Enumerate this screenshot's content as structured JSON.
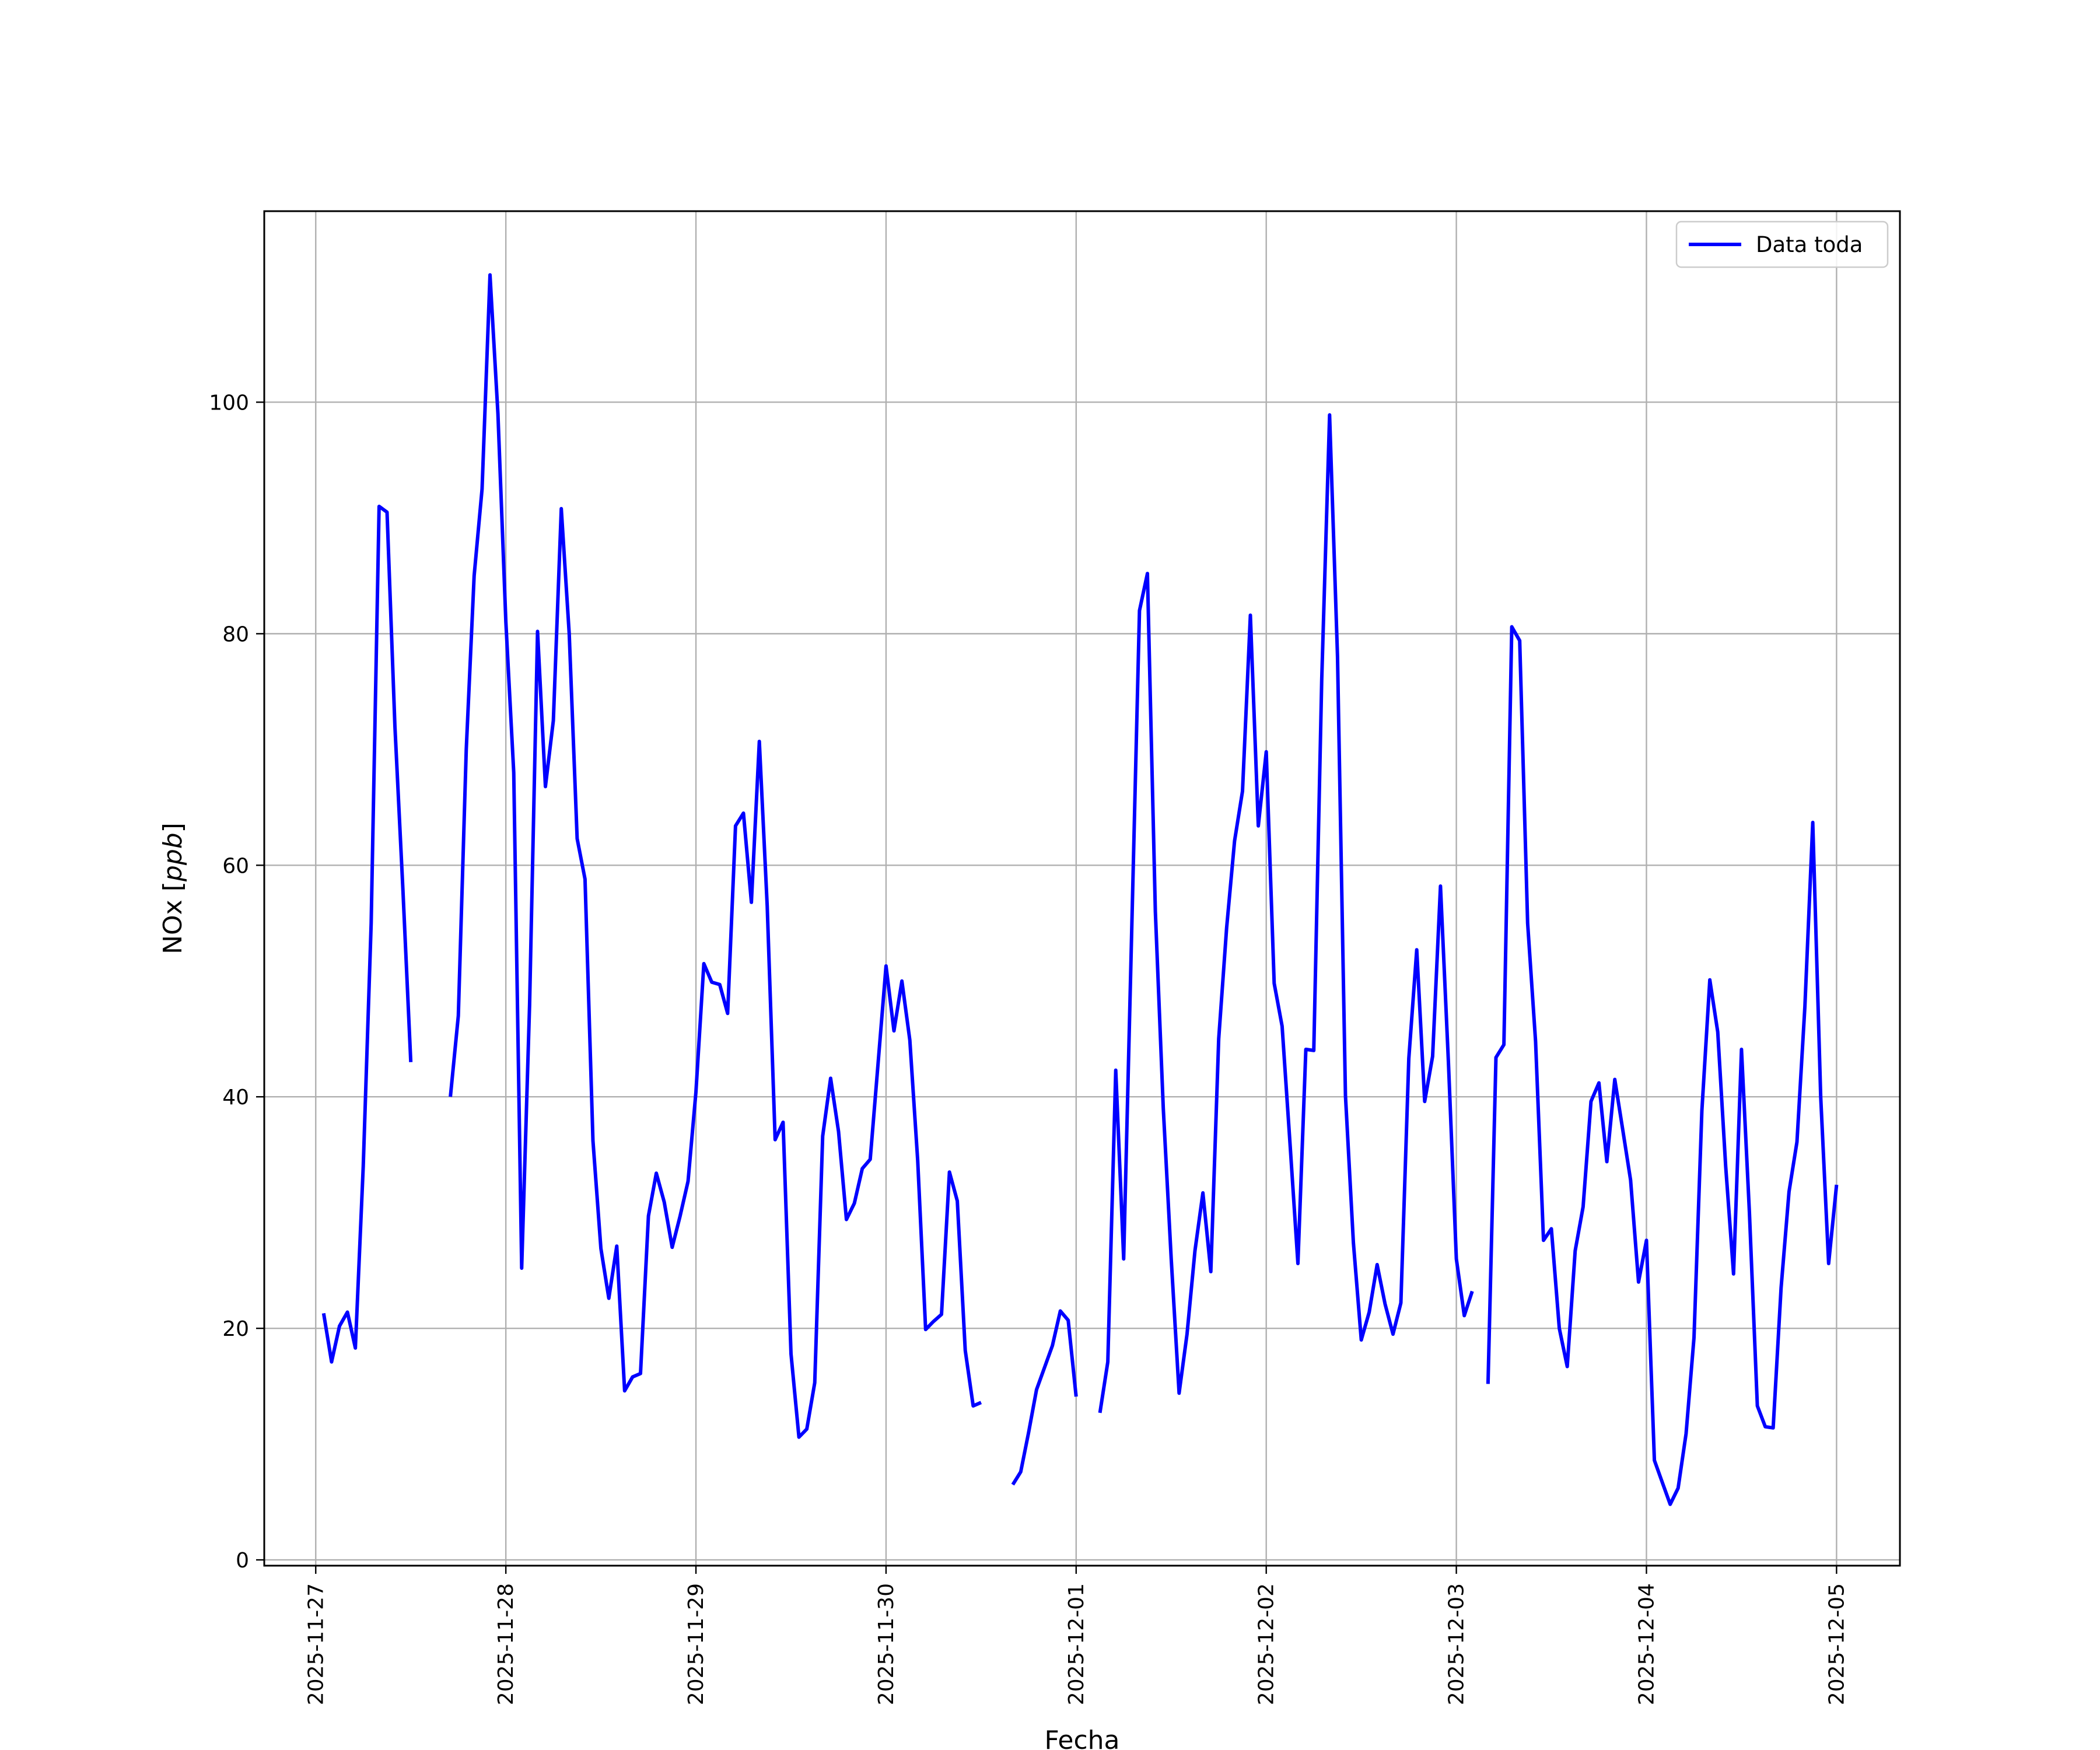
{
  "chart_data": {
    "type": "line",
    "xlabel": "Fecha",
    "ylabel": "NOx [ppb]",
    "ylabel_main": "NOx ",
    "ylabel_unit": "ppb",
    "xlim": [
      "2025-11-26T17:30",
      "2025-12-05T08:00"
    ],
    "ylim": [
      -0.5,
      116.5
    ],
    "x_ticks": [
      "2025-11-27",
      "2025-11-28",
      "2025-11-29",
      "2025-11-30",
      "2025-12-01",
      "2025-12-02",
      "2025-12-03",
      "2025-12-04",
      "2025-12-05"
    ],
    "y_ticks": [
      0,
      20,
      40,
      60,
      80,
      100
    ],
    "grid": true,
    "legend_position": "top-right",
    "color": "#0000ff",
    "series": [
      {
        "name": "Data toda",
        "points": [
          [
            "2025-11-27T01:00",
            21.3
          ],
          [
            "2025-11-27T02:00",
            17.1
          ],
          [
            "2025-11-27T03:00",
            20.2
          ],
          [
            "2025-11-27T04:00",
            21.4
          ],
          [
            "2025-11-27T05:00",
            18.3
          ],
          [
            "2025-11-27T06:00",
            34.0
          ],
          [
            "2025-11-27T07:00",
            55.0
          ],
          [
            "2025-11-27T08:00",
            91.0
          ],
          [
            "2025-11-27T09:00",
            90.5
          ],
          [
            "2025-11-27T10:00",
            72.0
          ],
          [
            "2025-11-27T11:00",
            58.0
          ],
          [
            "2025-11-27T12:00",
            43.0
          ],
          [
            "2025-11-27T13:00",
            null
          ],
          [
            "2025-11-27T14:00",
            null
          ],
          [
            "2025-11-27T15:00",
            null
          ],
          [
            "2025-11-27T16:00",
            null
          ],
          [
            "2025-11-27T17:00",
            40.0
          ],
          [
            "2025-11-27T18:00",
            47.0
          ],
          [
            "2025-11-27T19:00",
            70.0
          ],
          [
            "2025-11-27T20:00",
            85.0
          ],
          [
            "2025-11-27T21:00",
            92.5
          ],
          [
            "2025-11-27T22:00",
            111.0
          ],
          [
            "2025-11-27T23:00",
            99.0
          ],
          [
            "2025-11-28T00:00",
            81.0
          ],
          [
            "2025-11-28T01:00",
            68.0
          ],
          [
            "2025-11-28T02:00",
            25.2
          ],
          [
            "2025-11-28T03:00",
            48.0
          ],
          [
            "2025-11-28T04:00",
            80.2
          ],
          [
            "2025-11-28T05:00",
            66.8
          ],
          [
            "2025-11-28T06:00",
            72.5
          ],
          [
            "2025-11-28T07:00",
            90.8
          ],
          [
            "2025-11-28T08:00",
            80.0
          ],
          [
            "2025-11-28T09:00",
            62.3
          ],
          [
            "2025-11-28T10:00",
            58.8
          ],
          [
            "2025-11-28T11:00",
            36.2
          ],
          [
            "2025-11-28T12:00",
            26.9
          ],
          [
            "2025-11-28T13:00",
            22.6
          ],
          [
            "2025-11-28T14:00",
            27.1
          ],
          [
            "2025-11-28T15:00",
            14.6
          ],
          [
            "2025-11-28T16:00",
            15.8
          ],
          [
            "2025-11-28T17:00",
            16.1
          ],
          [
            "2025-11-28T18:00",
            29.7
          ],
          [
            "2025-11-28T19:00",
            33.4
          ],
          [
            "2025-11-28T20:00",
            30.9
          ],
          [
            "2025-11-28T21:00",
            27.0
          ],
          [
            "2025-11-28T22:00",
            29.7
          ],
          [
            "2025-11-28T23:00",
            32.7
          ],
          [
            "2025-11-29T00:00",
            40.4
          ],
          [
            "2025-11-29T01:00",
            51.5
          ],
          [
            "2025-11-29T02:00",
            49.9
          ],
          [
            "2025-11-29T03:00",
            49.7
          ],
          [
            "2025-11-29T04:00",
            47.2
          ],
          [
            "2025-11-29T05:00",
            63.4
          ],
          [
            "2025-11-29T06:00",
            64.5
          ],
          [
            "2025-11-29T07:00",
            56.8
          ],
          [
            "2025-11-29T08:00",
            70.7
          ],
          [
            "2025-11-29T09:00",
            56.5
          ],
          [
            "2025-11-29T10:00",
            36.3
          ],
          [
            "2025-11-29T11:00",
            37.8
          ],
          [
            "2025-11-29T12:00",
            17.8
          ],
          [
            "2025-11-29T13:00",
            10.6
          ],
          [
            "2025-11-29T14:00",
            11.3
          ],
          [
            "2025-11-29T15:00",
            15.3
          ],
          [
            "2025-11-29T16:00",
            36.6
          ],
          [
            "2025-11-29T17:00",
            41.6
          ],
          [
            "2025-11-29T18:00",
            37.0
          ],
          [
            "2025-11-29T19:00",
            29.4
          ],
          [
            "2025-11-29T20:00",
            30.8
          ],
          [
            "2025-11-29T21:00",
            33.8
          ],
          [
            "2025-11-29T22:00",
            34.6
          ],
          [
            "2025-11-29T23:00",
            42.9
          ],
          [
            "2025-11-30T00:00",
            51.3
          ],
          [
            "2025-11-30T01:00",
            45.7
          ],
          [
            "2025-11-30T02:00",
            50.0
          ],
          [
            "2025-11-30T03:00",
            44.9
          ],
          [
            "2025-11-30T04:00",
            34.5
          ],
          [
            "2025-11-30T05:00",
            19.9
          ],
          [
            "2025-11-30T06:00",
            20.6
          ],
          [
            "2025-11-30T07:00",
            21.2
          ],
          [
            "2025-11-30T08:00",
            33.5
          ],
          [
            "2025-11-30T09:00",
            31.0
          ],
          [
            "2025-11-30T10:00",
            18.1
          ],
          [
            "2025-11-30T11:00",
            13.3
          ],
          [
            "2025-11-30T12:00",
            13.6
          ],
          [
            "2025-11-30T13:00",
            null
          ],
          [
            "2025-11-30T14:00",
            null
          ],
          [
            "2025-11-30T15:00",
            null
          ],
          [
            "2025-11-30T16:00",
            6.5
          ],
          [
            "2025-11-30T17:00",
            7.6
          ],
          [
            "2025-11-30T18:00",
            11.0
          ],
          [
            "2025-11-30T19:00",
            14.7
          ],
          [
            "2025-11-30T20:00",
            16.6
          ],
          [
            "2025-11-30T21:00",
            18.5
          ],
          [
            "2025-11-30T22:00",
            21.5
          ],
          [
            "2025-11-30T23:00",
            20.7
          ],
          [
            "2025-12-01T00:00",
            14.1
          ],
          [
            "2025-12-01T01:00",
            null
          ],
          [
            "2025-12-01T02:00",
            null
          ],
          [
            "2025-12-01T03:00",
            12.7
          ],
          [
            "2025-12-01T04:00",
            17.1
          ],
          [
            "2025-12-01T05:00",
            42.3
          ],
          [
            "2025-12-01T06:00",
            26.0
          ],
          [
            "2025-12-01T07:00",
            54.0
          ],
          [
            "2025-12-01T08:00",
            82.0
          ],
          [
            "2025-12-01T09:00",
            85.2
          ],
          [
            "2025-12-01T10:00",
            56.0
          ],
          [
            "2025-12-01T11:00",
            39.0
          ],
          [
            "2025-12-01T12:00",
            26.0
          ],
          [
            "2025-12-01T13:00",
            14.4
          ],
          [
            "2025-12-01T14:00",
            19.5
          ],
          [
            "2025-12-01T15:00",
            26.7
          ],
          [
            "2025-12-01T16:00",
            31.7
          ],
          [
            "2025-12-01T17:00",
            24.9
          ],
          [
            "2025-12-01T18:00",
            45.0
          ],
          [
            "2025-12-01T19:00",
            54.6
          ],
          [
            "2025-12-01T20:00",
            62.1
          ],
          [
            "2025-12-01T21:00",
            66.4
          ],
          [
            "2025-12-01T22:00",
            81.6
          ],
          [
            "2025-12-01T23:00",
            63.4
          ],
          [
            "2025-12-02T00:00",
            69.8
          ],
          [
            "2025-12-02T01:00",
            49.8
          ],
          [
            "2025-12-02T02:00",
            46.1
          ],
          [
            "2025-12-02T03:00",
            36.0
          ],
          [
            "2025-12-02T04:00",
            25.6
          ],
          [
            "2025-12-02T05:00",
            44.1
          ],
          [
            "2025-12-02T06:00",
            44.0
          ],
          [
            "2025-12-02T07:00",
            76.0
          ],
          [
            "2025-12-02T08:00",
            98.9
          ],
          [
            "2025-12-02T09:00",
            78.0
          ],
          [
            "2025-12-02T10:00",
            40.1
          ],
          [
            "2025-12-02T11:00",
            27.4
          ],
          [
            "2025-12-02T12:00",
            19.0
          ],
          [
            "2025-12-02T13:00",
            21.4
          ],
          [
            "2025-12-02T14:00",
            25.5
          ],
          [
            "2025-12-02T15:00",
            22.1
          ],
          [
            "2025-12-02T16:00",
            19.5
          ],
          [
            "2025-12-02T17:00",
            22.2
          ],
          [
            "2025-12-02T18:00",
            43.3
          ],
          [
            "2025-12-02T19:00",
            52.7
          ],
          [
            "2025-12-02T20:00",
            39.6
          ],
          [
            "2025-12-02T21:00",
            43.5
          ],
          [
            "2025-12-02T22:00",
            58.2
          ],
          [
            "2025-12-02T23:00",
            43.0
          ],
          [
            "2025-12-03T00:00",
            26.0
          ],
          [
            "2025-12-03T01:00",
            21.1
          ],
          [
            "2025-12-03T02:00",
            23.2
          ],
          [
            "2025-12-03T03:00",
            null
          ],
          [
            "2025-12-03T04:00",
            15.2
          ],
          [
            "2025-12-03T05:00",
            43.4
          ],
          [
            "2025-12-03T06:00",
            44.5
          ],
          [
            "2025-12-03T07:00",
            80.6
          ],
          [
            "2025-12-03T08:00",
            79.4
          ],
          [
            "2025-12-03T09:00",
            55.0
          ],
          [
            "2025-12-03T10:00",
            44.8
          ],
          [
            "2025-12-03T11:00",
            27.6
          ],
          [
            "2025-12-03T12:00",
            28.6
          ],
          [
            "2025-12-03T13:00",
            20.0
          ],
          [
            "2025-12-03T14:00",
            16.7
          ],
          [
            "2025-12-03T15:00",
            26.7
          ],
          [
            "2025-12-03T16:00",
            30.5
          ],
          [
            "2025-12-03T17:00",
            39.6
          ],
          [
            "2025-12-03T18:00",
            41.2
          ],
          [
            "2025-12-03T19:00",
            34.4
          ],
          [
            "2025-12-03T20:00",
            41.5
          ],
          [
            "2025-12-03T21:00",
            37.2
          ],
          [
            "2025-12-03T22:00",
            32.8
          ],
          [
            "2025-12-03T23:00",
            24.0
          ],
          [
            "2025-12-04T00:00",
            27.6
          ],
          [
            "2025-12-04T01:00",
            8.6
          ],
          [
            "2025-12-04T02:00",
            6.7
          ],
          [
            "2025-12-04T03:00",
            4.8
          ],
          [
            "2025-12-04T04:00",
            6.2
          ],
          [
            "2025-12-04T05:00",
            10.9
          ],
          [
            "2025-12-04T06:00",
            19.2
          ],
          [
            "2025-12-04T07:00",
            38.8
          ],
          [
            "2025-12-04T08:00",
            50.1
          ],
          [
            "2025-12-04T09:00",
            45.6
          ],
          [
            "2025-12-04T10:00",
            34.0
          ],
          [
            "2025-12-04T11:00",
            24.7
          ],
          [
            "2025-12-04T12:00",
            44.1
          ],
          [
            "2025-12-04T13:00",
            30.0
          ],
          [
            "2025-12-04T14:00",
            13.3
          ],
          [
            "2025-12-04T15:00",
            11.5
          ],
          [
            "2025-12-04T16:00",
            11.4
          ],
          [
            "2025-12-04T17:00",
            23.5
          ],
          [
            "2025-12-04T18:00",
            31.8
          ],
          [
            "2025-12-04T19:00",
            36.1
          ],
          [
            "2025-12-04T20:00",
            47.8
          ],
          [
            "2025-12-04T21:00",
            63.7
          ],
          [
            "2025-12-04T22:00",
            40.0
          ],
          [
            "2025-12-04T23:00",
            25.6
          ],
          [
            "2025-12-05T00:00",
            32.4
          ]
        ]
      }
    ]
  }
}
